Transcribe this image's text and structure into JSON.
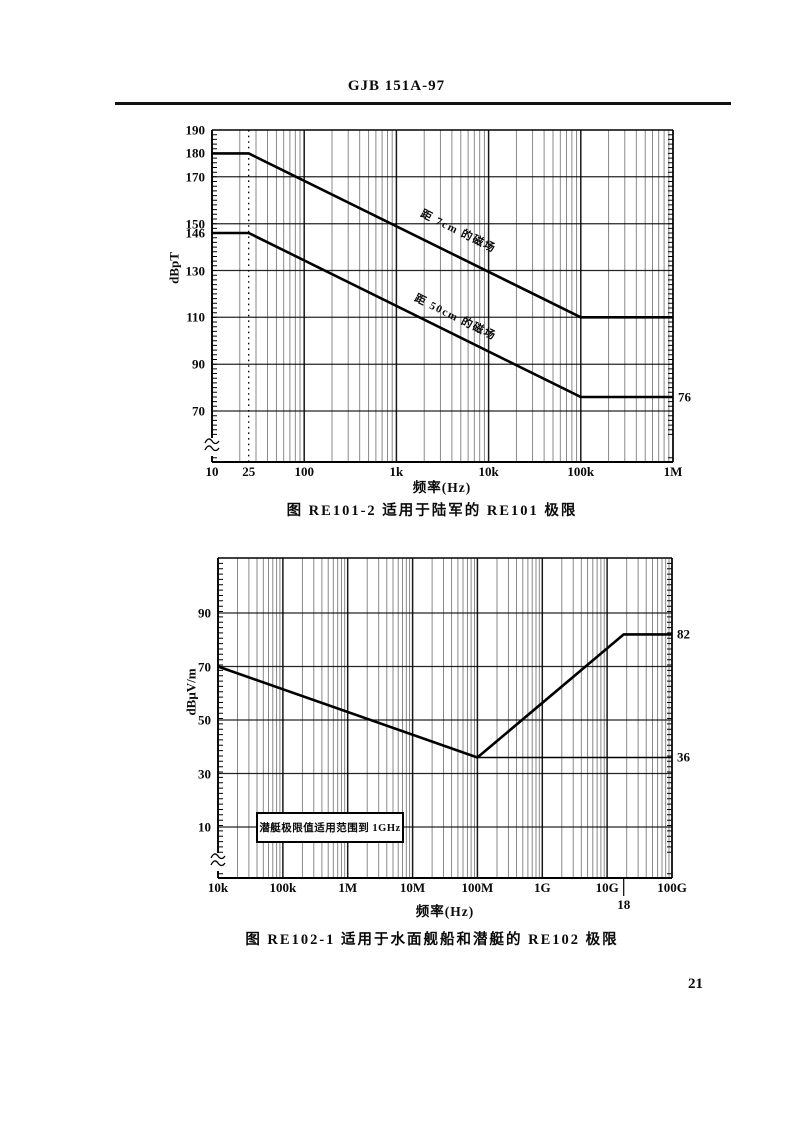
{
  "page": {
    "header_title": "GJB 151A-97",
    "page_number": "21"
  },
  "chart_data": [
    {
      "id": "re101-2",
      "type": "line",
      "caption": "图 RE101-2  适用于陆军的 RE101 极限",
      "xlabel": "频率(Hz)",
      "ylabel": "dBpT",
      "x_log": true,
      "xlim": [
        10,
        1000000
      ],
      "ylim": [
        60,
        190
      ],
      "grid": "log graph paper, minor decade lines on",
      "x_ticks": [
        {
          "v": 10,
          "label": "10"
        },
        {
          "v": 25,
          "label": "25"
        },
        {
          "v": 100,
          "label": "100"
        },
        {
          "v": 1000,
          "label": "1k"
        },
        {
          "v": 10000,
          "label": "10k"
        },
        {
          "v": 100000,
          "label": "100k"
        },
        {
          "v": 1000000,
          "label": "1M"
        }
      ],
      "y_ticks": [
        {
          "v": 190,
          "label": "190"
        },
        {
          "v": 180,
          "label": "180"
        },
        {
          "v": 170,
          "label": "170"
        },
        {
          "v": 150,
          "label": "150"
        },
        {
          "v": 146,
          "label": "146"
        },
        {
          "v": 130,
          "label": "130"
        },
        {
          "v": 110,
          "label": "110"
        },
        {
          "v": 90,
          "label": "90"
        },
        {
          "v": 70,
          "label": "70"
        }
      ],
      "y_gridlines": [
        170,
        150,
        130,
        110,
        90,
        70
      ],
      "dotted_vline_at": 25,
      "series": [
        {
          "name": "距 7cm 的磁场",
          "points": [
            [
              10,
              180
            ],
            [
              25,
              180
            ],
            [
              100000,
              110
            ],
            [
              1000000,
              110
            ]
          ]
        },
        {
          "name": "距 50cm 的磁场",
          "points": [
            [
              10,
              146
            ],
            [
              25,
              146
            ],
            [
              100000,
              76
            ],
            [
              1000000,
              76
            ]
          ]
        }
      ],
      "edge_labels": [
        {
          "value": 76,
          "label": "76"
        }
      ]
    },
    {
      "id": "re102-1",
      "type": "line",
      "caption": "图 RE102-1  适用于水面舰船和潜艇的 RE102 极限",
      "xlabel": "频率(Hz)",
      "ylabel": "dBμV/m",
      "x_log": true,
      "xlim": [
        10000,
        100000000000
      ],
      "ylim": [
        0,
        110
      ],
      "grid": "log graph paper, minor decade lines on",
      "x_ticks": [
        {
          "v": 10000,
          "label": "10k"
        },
        {
          "v": 100000,
          "label": "100k"
        },
        {
          "v": 1000000,
          "label": "1M"
        },
        {
          "v": 10000000,
          "label": "10M"
        },
        {
          "v": 100000000,
          "label": "100M"
        },
        {
          "v": 1000000000,
          "label": "1G"
        },
        {
          "v": 10000000000,
          "label": "10G"
        },
        {
          "v": 100000000000,
          "label": "100G"
        }
      ],
      "below_axis_tick": {
        "v": 18000000000,
        "label": "18"
      },
      "y_ticks": [
        {
          "v": 90,
          "label": "90"
        },
        {
          "v": 70,
          "label": "70"
        },
        {
          "v": 50,
          "label": "50"
        },
        {
          "v": 30,
          "label": "30"
        },
        {
          "v": 10,
          "label": "10"
        }
      ],
      "y_gridlines": [
        90,
        70,
        50,
        30,
        10
      ],
      "series": [
        {
          "name": "",
          "points": [
            [
              10000,
              70
            ],
            [
              100000000,
              36
            ],
            [
              18000000000,
              82
            ],
            [
              100000000000,
              82
            ]
          ]
        }
      ],
      "ref_lines": [
        {
          "value": 36,
          "from": 100000000,
          "to": 100000000000
        }
      ],
      "edge_labels": [
        {
          "value": 82,
          "label": "82"
        },
        {
          "value": 36,
          "label": "36"
        }
      ],
      "note": "潜艇极限值适用范围到 1GHz"
    }
  ]
}
